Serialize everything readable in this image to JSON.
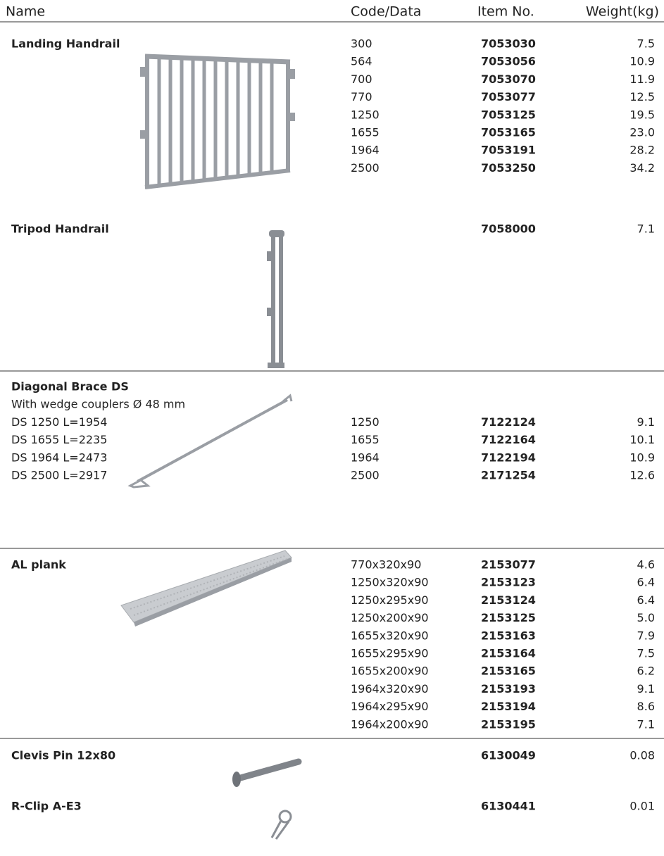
{
  "header": {
    "name": "Name",
    "code": "Code/Data",
    "item": "Item No.",
    "weight": "Weight(kg)"
  },
  "sections": [
    {
      "name": "Landing Handrail",
      "rows": [
        {
          "code": "300",
          "item": "7053030",
          "weight": "7.5"
        },
        {
          "code": "564",
          "item": "7053056",
          "weight": "10.9"
        },
        {
          "code": "700",
          "item": "7053070",
          "weight": "11.9"
        },
        {
          "code": "770",
          "item": "7053077",
          "weight": "12.5"
        },
        {
          "code": "1250",
          "item": "7053125",
          "weight": "19.5"
        },
        {
          "code": "1655",
          "item": "7053165",
          "weight": "23.0"
        },
        {
          "code": "1964",
          "item": "7053191",
          "weight": "28.2"
        },
        {
          "code": "2500",
          "item": "7053250",
          "weight": "34.2"
        }
      ]
    },
    {
      "name": "Tripod Handrail",
      "rows": [
        {
          "item": "7058000",
          "weight": "7.1"
        }
      ]
    },
    {
      "name": "Diagonal Brace DS",
      "description": "With wedge couplers Ø 48 mm",
      "labels": [
        "DS 1250 L=1954",
        "DS 1655 L=2235",
        "DS 1964 L=2473",
        "DS 2500 L=2917"
      ],
      "rows": [
        {
          "code": "1250",
          "item": "7122124",
          "weight": "9.1"
        },
        {
          "code": "1655",
          "item": "7122164",
          "weight": "10.1"
        },
        {
          "code": "1964",
          "item": "7122194",
          "weight": "10.9"
        },
        {
          "code": "2500",
          "item": "2171254",
          "weight": "12.6"
        }
      ]
    },
    {
      "name": "AL plank",
      "rows": [
        {
          "code": "770x320x90",
          "item": "2153077",
          "weight": "4.6"
        },
        {
          "code": "1250x320x90",
          "item": "2153123",
          "weight": "6.4"
        },
        {
          "code": "1250x295x90",
          "item": "2153124",
          "weight": "6.4"
        },
        {
          "code": "1250x200x90",
          "item": "2153125",
          "weight": "5.0"
        },
        {
          "code": "1655x320x90",
          "item": "2153163",
          "weight": "7.9"
        },
        {
          "code": "1655x295x90",
          "item": "2153164",
          "weight": "7.5"
        },
        {
          "code": "1655x200x90",
          "item": "2153165",
          "weight": "6.2"
        },
        {
          "code": "1964x320x90",
          "item": "2153193",
          "weight": "9.1"
        },
        {
          "code": "1964x295x90",
          "item": "2153194",
          "weight": "8.6"
        },
        {
          "code": "1964x200x90",
          "item": "2153195",
          "weight": "7.1"
        }
      ]
    },
    {
      "name": "Clevis Pin 12x80",
      "rows": [
        {
          "item": "6130049",
          "weight": "0.08"
        }
      ]
    },
    {
      "name": "R-Clip A-E3",
      "rows": [
        {
          "item": "6130441",
          "weight": "0.01"
        }
      ]
    }
  ]
}
